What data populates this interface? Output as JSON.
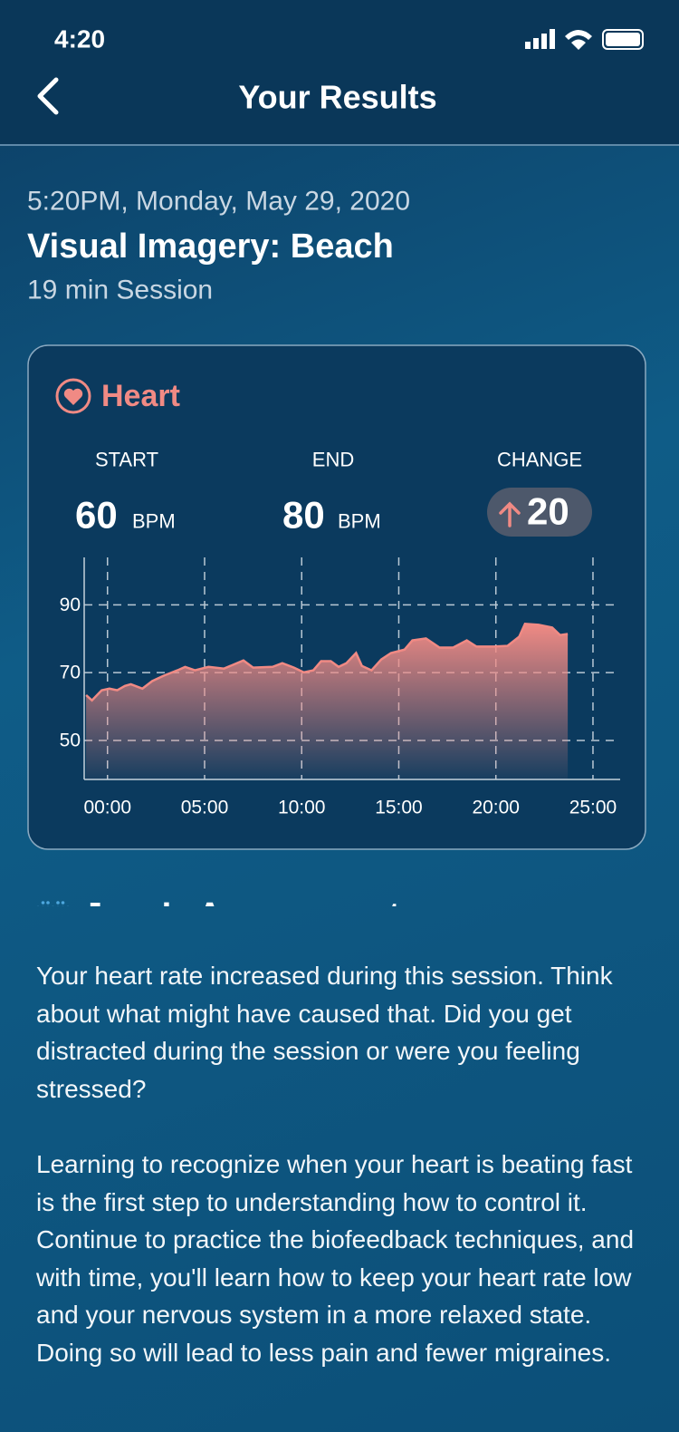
{
  "status_bar": {
    "time": "4:20"
  },
  "header": {
    "title": "Your Results"
  },
  "session": {
    "datetime": "5:20PM, Monday, May 29, 2020",
    "title": "Visual Imagery: Beach",
    "duration": "19 min Session"
  },
  "card": {
    "title": "Heart",
    "stats": [
      {
        "label": "START",
        "value": 60,
        "unit": "BPM"
      },
      {
        "label": "END",
        "value": 80,
        "unit": "BPM"
      }
    ],
    "change": {
      "label": "CHANGE",
      "value": 20
    }
  },
  "chart_data": {
    "type": "area",
    "color": "#f08a84",
    "grid": true,
    "x": [
      -1.1,
      -0.8,
      -0.3,
      0.1,
      0.5,
      0.9,
      1.2,
      1.8,
      2.3,
      2.9,
      3.6,
      4.0,
      4.5,
      5.2,
      6.0,
      7.0,
      7.5,
      8.5,
      9.0,
      9.6,
      10.1,
      10.6,
      11.0,
      11.5,
      11.9,
      12.3,
      12.8,
      13.1,
      13.6,
      14.1,
      14.6,
      15.3,
      15.7,
      16.4,
      17.1,
      17.8,
      18.5,
      19.0,
      19.9,
      20.6,
      21.2,
      21.5,
      22.2,
      22.9,
      23.3,
      23.7
    ],
    "values": [
      63.4,
      61.8,
      64.8,
      65.3,
      64.8,
      66.1,
      66.6,
      65.3,
      67.5,
      69.1,
      70.7,
      71.7,
      70.7,
      71.7,
      71.2,
      73.6,
      71.5,
      71.7,
      72.8,
      71.5,
      70.1,
      70.7,
      73.4,
      73.4,
      71.7,
      72.8,
      75.8,
      72.0,
      70.7,
      73.9,
      75.8,
      76.8,
      79.5,
      80.1,
      77.4,
      77.4,
      79.5,
      77.7,
      77.7,
      77.9,
      80.6,
      84.4,
      84.1,
      83.3,
      81.1,
      81.4
    ],
    "xlim": [
      -1.2,
      26.4
    ],
    "ylim": [
      38.5,
      104
    ],
    "xticks": [
      {
        "value": 0,
        "label": "00:00"
      },
      {
        "value": 5,
        "label": "05:00"
      },
      {
        "value": 10,
        "label": "10:00"
      },
      {
        "value": 15,
        "label": "15:00"
      },
      {
        "value": 20,
        "label": "20:00"
      },
      {
        "value": 25,
        "label": "25:00"
      }
    ],
    "yticks": [
      50,
      70,
      90
    ]
  },
  "assessment": {
    "title": "Juva’s Assessment",
    "paragraphs": [
      "Your heart rate increased during this session. Think about what might have caused that. Did you get distracted during the session or were you feeling stressed?",
      "Learning to recognize when your heart is beating fast is the first step to understanding how to control it. Continue to practice the biofeedback techniques, and with time, you'll learn how to keep your heart rate low and your nervous system in a more relaxed state. Doing so will lead to less pain and fewer migraines."
    ]
  }
}
